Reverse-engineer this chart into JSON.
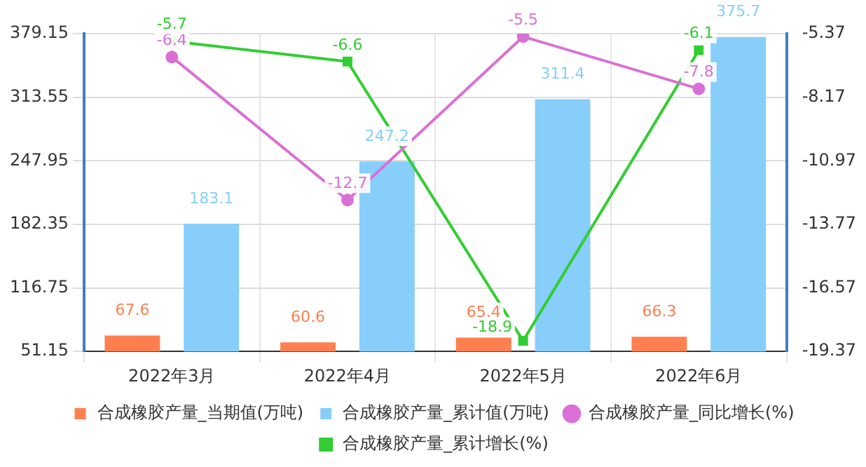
{
  "chart_data": {
    "type": "bar",
    "categories": [
      "2022年3月",
      "2022年4月",
      "2022年5月",
      "2022年6月"
    ],
    "series": [
      {
        "name": "合成橡胶产量_当期值(万吨)",
        "color": "#ff7f50",
        "values": [
          67.6,
          60.6,
          65.4,
          66.3
        ]
      },
      {
        "name": "合成橡胶产量_累计值(万吨)",
        "color": "#87cefa",
        "values": [
          183.1,
          247.2,
          311.4,
          375.7
        ]
      },
      {
        "name": "合成橡胶产量_同比增长(%)",
        "type": "line",
        "axis": "y2",
        "marker": "circle",
        "color": "#da70d6",
        "values": [
          -6.4,
          -12.7,
          -5.5,
          -7.8
        ]
      },
      {
        "name": "合成橡胶产量_累计增长(%)",
        "type": "line",
        "axis": "y2",
        "marker": "square",
        "color": "#32cd32",
        "values": [
          -5.7,
          -6.6,
          -18.9,
          -6.1
        ]
      }
    ],
    "ylim": [
      51.15,
      379.15
    ],
    "yticks": [
      51.15,
      116.75,
      182.35,
      247.95,
      313.55,
      379.15
    ],
    "y2lim": [
      -19.37,
      -5.37
    ],
    "y2ticks": [
      -19.37,
      -16.57,
      -13.77,
      -10.97,
      -8.17,
      -5.37
    ],
    "grid": true,
    "legend": "bottom",
    "data_labels": true,
    "line_style": "solid"
  }
}
